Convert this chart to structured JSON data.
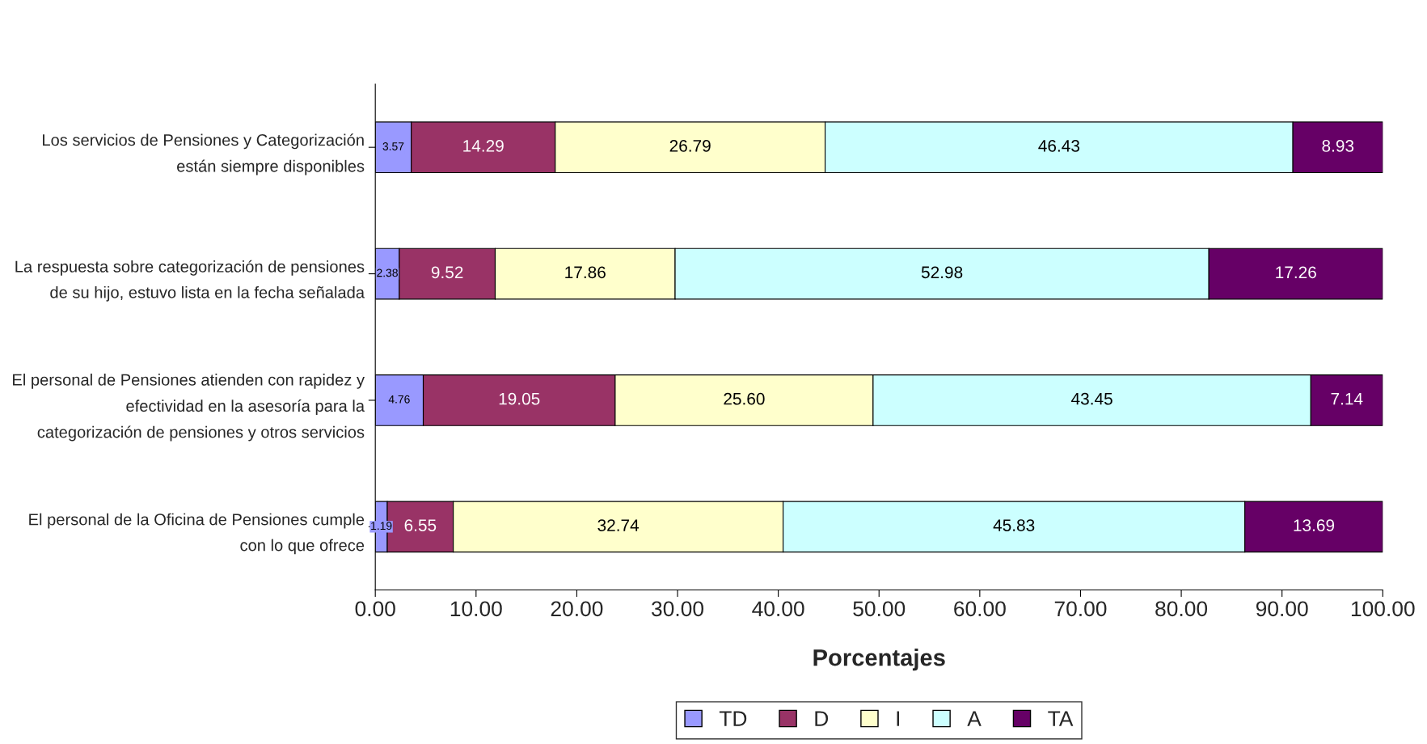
{
  "chart_data": {
    "type": "bar",
    "orientation": "horizontal",
    "stacked": true,
    "categories": [
      "Los servicios de Pensiones y Categorización están siempre disponibles",
      "La respuesta sobre categorización de pensiones de su hijo, estuvo lista en la fecha señalada",
      "El personal de Pensiones atienden con rapidez y efectividad en la asesoría para la categorización de pensiones y otros servicios",
      "El personal de la Oficina de Pensiones cumple con lo que ofrece"
    ],
    "series": [
      {
        "name": "TD",
        "color": "#9999ff",
        "values": [
          3.57,
          2.38,
          4.76,
          1.19
        ],
        "value_labels": [
          "3.57",
          "2.38",
          "4.76",
          "1.19"
        ]
      },
      {
        "name": "D",
        "color": "#993366",
        "values": [
          14.29,
          9.52,
          19.05,
          6.55
        ],
        "value_labels": [
          "14.29",
          "9.52",
          "19.05",
          "6.55"
        ]
      },
      {
        "name": "I",
        "color": "#ffffcc",
        "values": [
          26.79,
          17.86,
          25.6,
          32.74
        ],
        "value_labels": [
          "26.79",
          "17.86",
          "25.60",
          "32.74"
        ]
      },
      {
        "name": "A",
        "color": "#ccffff",
        "values": [
          46.43,
          52.98,
          43.45,
          45.83
        ],
        "value_labels": [
          "46.43",
          "52.98",
          "43.45",
          "45.83"
        ]
      },
      {
        "name": "TA",
        "color": "#660066",
        "values": [
          8.93,
          17.26,
          7.14,
          13.69
        ],
        "value_labels": [
          "8.93",
          "17.26",
          "7.14",
          "13.69"
        ]
      }
    ],
    "xlabel": "Porcentajes",
    "xlim": [
      0,
      100
    ],
    "xticks": [
      {
        "value": 0,
        "label": "0.00"
      },
      {
        "value": 10,
        "label": "10.00"
      },
      {
        "value": 20,
        "label": "20.00"
      },
      {
        "value": 30,
        "label": "30.00"
      },
      {
        "value": 40,
        "label": "40.00"
      },
      {
        "value": 50,
        "label": "50.00"
      },
      {
        "value": 60,
        "label": "60.00"
      },
      {
        "value": 70,
        "label": "70.00"
      },
      {
        "value": 80,
        "label": "80.00"
      },
      {
        "value": 90,
        "label": "90.00"
      },
      {
        "value": 100,
        "label": "100.00"
      }
    ],
    "grid": false,
    "legend": "bottom"
  }
}
